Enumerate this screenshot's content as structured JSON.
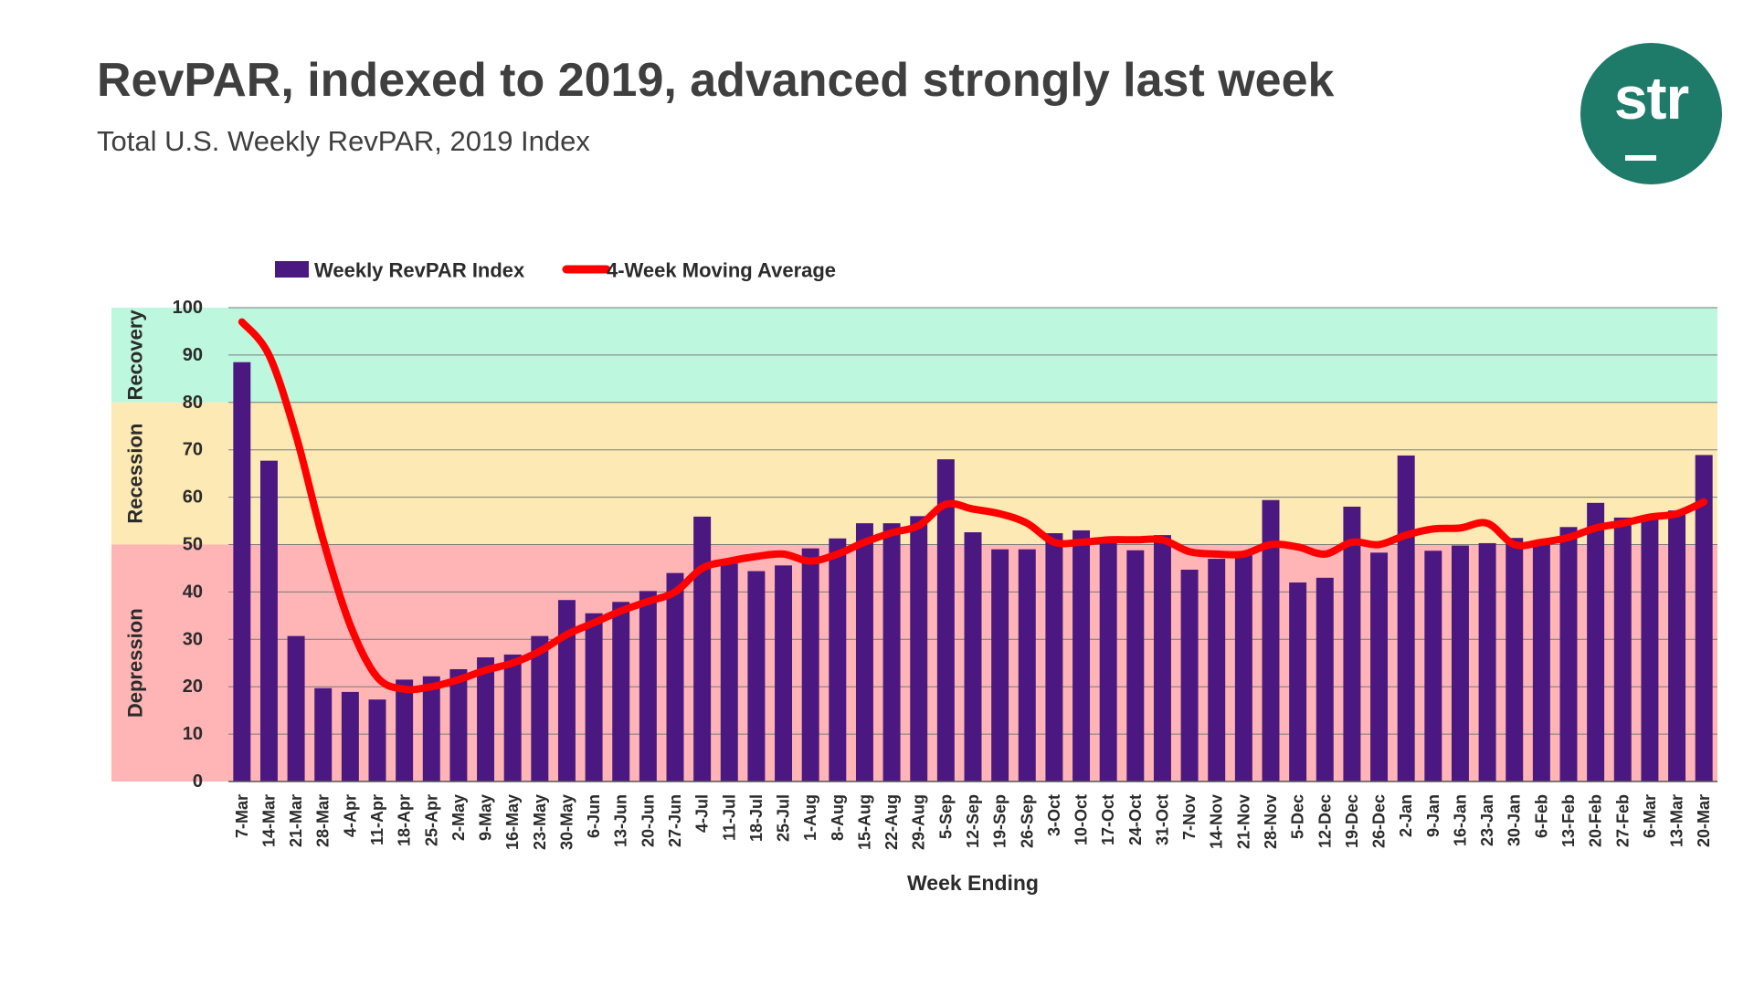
{
  "header": {
    "title": "RevPAR, indexed to 2019, advanced strongly last week",
    "subtitle": "Total U.S. Weekly RevPAR, 2019 Index"
  },
  "logo": {
    "text": "str",
    "background": "#1e7b6a"
  },
  "colors": {
    "bar": "#4b1882",
    "line": "#ff0000",
    "recovery": "#bdf7de",
    "recession": "#fde9b3",
    "depression": "#ffb5b5",
    "gridline": "#000000",
    "text": "#2b2b2b"
  },
  "chart_data": {
    "type": "bar",
    "title": "Total U.S. Weekly RevPAR, 2019 Index",
    "xlabel": "Week Ending",
    "ylabel": "",
    "ylim": [
      0,
      100
    ],
    "yticks": [
      0,
      10,
      20,
      30,
      40,
      50,
      60,
      70,
      80,
      90,
      100
    ],
    "grid": true,
    "legend_position": "top-left",
    "bands": [
      {
        "label": "Depression",
        "from": 0,
        "to": 50
      },
      {
        "label": "Recession",
        "from": 50,
        "to": 80
      },
      {
        "label": "Recovery",
        "from": 80,
        "to": 100
      }
    ],
    "categories": [
      "7-Mar",
      "14-Mar",
      "21-Mar",
      "28-Mar",
      "4-Apr",
      "11-Apr",
      "18-Apr",
      "25-Apr",
      "2-May",
      "9-May",
      "16-May",
      "23-May",
      "30-May",
      "6-Jun",
      "13-Jun",
      "20-Jun",
      "27-Jun",
      "4-Jul",
      "11-Jul",
      "18-Jul",
      "25-Jul",
      "1-Aug",
      "8-Aug",
      "15-Aug",
      "22-Aug",
      "29-Aug",
      "5-Sep",
      "12-Sep",
      "19-Sep",
      "26-Sep",
      "3-Oct",
      "10-Oct",
      "17-Oct",
      "24-Oct",
      "31-Oct",
      "7-Nov",
      "14-Nov",
      "21-Nov",
      "28-Nov",
      "5-Dec",
      "12-Dec",
      "19-Dec",
      "26-Dec",
      "2-Jan",
      "9-Jan",
      "16-Jan",
      "23-Jan",
      "30-Jan",
      "6-Feb",
      "13-Feb",
      "20-Feb",
      "27-Feb",
      "6-Mar",
      "13-Mar",
      "20-Mar"
    ],
    "series": [
      {
        "name": "Weekly RevPAR Index",
        "type": "bar",
        "values": [
          88.5,
          67.7,
          30.7,
          19.7,
          18.9,
          17.3,
          21.5,
          22.2,
          23.7,
          26.2,
          26.8,
          30.7,
          38.3,
          35.5,
          37.9,
          40.2,
          44.0,
          55.9,
          46.0,
          44.4,
          45.6,
          49.2,
          51.3,
          54.5,
          54.5,
          56.0,
          68.0,
          52.6,
          49.0,
          49.0,
          52.4,
          53.0,
          50.9,
          48.8,
          52.0,
          44.7,
          47.0,
          47.9,
          59.4,
          42.0,
          43.0,
          58.0,
          48.3,
          68.8,
          48.7,
          49.8,
          50.3,
          51.4,
          50.0,
          53.7,
          58.8,
          55.7,
          55.6,
          57.2,
          68.9
        ]
      },
      {
        "name": "4-Week Moving Average",
        "type": "line",
        "values": [
          97.0,
          90.0,
          73.0,
          51.0,
          33.0,
          22.0,
          19.5,
          20.0,
          21.5,
          23.5,
          25.0,
          27.5,
          31.0,
          33.5,
          36.0,
          38.0,
          40.0,
          45.0,
          46.5,
          47.5,
          48.0,
          46.5,
          48.0,
          50.5,
          52.5,
          54.0,
          58.5,
          57.5,
          56.5,
          54.5,
          50.5,
          50.5,
          51.0,
          51.0,
          51.0,
          48.5,
          48.0,
          48.0,
          50.0,
          49.5,
          48.0,
          50.5,
          50.0,
          52.0,
          53.3,
          53.5,
          54.5,
          50.0,
          50.5,
          51.5,
          53.5,
          54.5,
          55.8,
          56.5,
          59.0
        ]
      }
    ]
  }
}
